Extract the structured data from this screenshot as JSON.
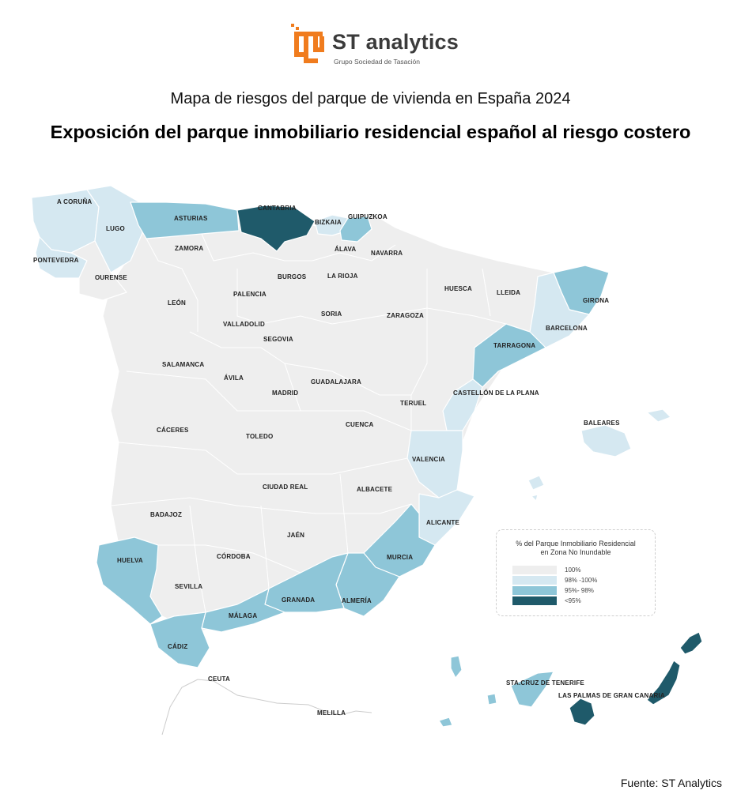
{
  "header": {
    "logo_name": "ST analytics",
    "logo_sub": "Grupo Sociedad de Tasación",
    "title": "Mapa de riesgos del parque de vivienda en España 2024",
    "subtitle": "Exposición del parque inmobiliario residencial español al riesgo costero"
  },
  "colors": {
    "c100": "#eeeeee",
    "c98": "#d5e8f1",
    "c95": "#8ec6d8",
    "c_lt95": "#1f5a6a",
    "border": "#ffffff",
    "brand_orange": "#f07c1e"
  },
  "legend": {
    "title_line1": "% del Parque Inmobiliario Residencial",
    "title_line2": "en Zona No Inundable",
    "items": [
      {
        "label": "100%",
        "color": "#eeeeee"
      },
      {
        "label": "98% -100%",
        "color": "#d5e8f1"
      },
      {
        "label": "95%- 98%",
        "color": "#8ec6d8"
      },
      {
        "label": "<95%",
        "color": "#1f5a6a"
      }
    ]
  },
  "provinces": {
    "a_coruna": "A CORUÑA",
    "lugo": "LUGO",
    "pontevedra": "PONTEVEDRA",
    "ourense": "OURENSE",
    "asturias": "ASTURIAS",
    "cantabria": "CANTABRIA",
    "bizkaia": "BIZKAIA",
    "gipuzkoa": "GUIPUZKOA",
    "alava": "ÁLAVA",
    "navarra": "NAVARRA",
    "zamora": "ZAMORA",
    "burgos": "BURGOS",
    "la_rioja": "LA RIOJA",
    "palencia": "PALENCIA",
    "leon": "LEÓN",
    "huesca": "HUESCA",
    "lleida": "LLEIDA",
    "girona": "GIRONA",
    "barcelona": "BARCELONA",
    "tarragona": "TARRAGONA",
    "soria": "SORIA",
    "zaragoza": "ZARAGOZA",
    "valladolid": "VALLADOLID",
    "segovia": "SEGOVIA",
    "salamanca": "SALAMANCA",
    "avila": "ÁVILA",
    "madrid": "MADRID",
    "guadalajara": "GUADALAJARA",
    "teruel": "TERUEL",
    "castellon": "CASTELLÓN DE LA PLANA",
    "caceres": "CÁCERES",
    "toledo": "TOLEDO",
    "cuenca": "CUENCA",
    "valencia": "VALENCIA",
    "baleares": "BALEARES",
    "ciudad_real": "CIUDAD REAL",
    "albacete": "ALBACETE",
    "badajoz": "BADAJOZ",
    "alicante": "ALICANTE",
    "jaen": "JAÉN",
    "cordoba": "CÓRDOBA",
    "huelva": "HUELVA",
    "murcia": "MURCIA",
    "sevilla": "SEVILLA",
    "granada": "GRANADA",
    "almeria": "ALMERÍA",
    "malaga": "MÁLAGA",
    "cadiz": "CÁDIZ",
    "ceuta": "CEUTA",
    "melilla": "MELILLA",
    "tenerife": "STA.CRUZ DE TENERIFE",
    "las_palmas": "LAS PALMAS DE GRAN CANARIA"
  },
  "source": "Fuente: ST Analytics"
}
